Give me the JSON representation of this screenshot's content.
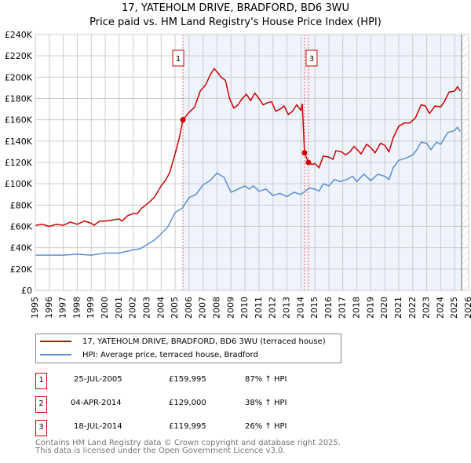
{
  "title": "17, YATEHOLM DRIVE, BRADFORD, BD6 3WU",
  "subtitle": "Price paid vs. HM Land Registry's House Price Index (HPI)",
  "chart_data": {
    "type": "line",
    "title": "17, YATEHOLM DRIVE, BRADFORD, BD6 3WU",
    "subtitle": "Price paid vs. HM Land Registry's House Price Index (HPI)",
    "xlim": [
      1995,
      2026
    ],
    "ylim": [
      0,
      240000
    ],
    "x_ticks": [
      "1995",
      "1996",
      "1997",
      "1998",
      "1999",
      "2000",
      "2001",
      "2002",
      "2003",
      "2004",
      "2005",
      "2006",
      "2007",
      "2008",
      "2009",
      "2010",
      "2011",
      "2012",
      "2013",
      "2014",
      "2015",
      "2016",
      "2017",
      "2018",
      "2019",
      "2020",
      "2021",
      "2022",
      "2023",
      "2024",
      "2025",
      "2026"
    ],
    "y_ticks": [
      "£0",
      "£20K",
      "£40K",
      "£60K",
      "£80K",
      "£100K",
      "£120K",
      "£140K",
      "£160K",
      "£180K",
      "£200K",
      "£220K",
      "£240K"
    ],
    "grid": true,
    "colors": {
      "property": "#cc0000",
      "hpi": "#5b8fd4",
      "shade": "#eef3fc"
    },
    "series": [
      {
        "name": "17, YATEHOLM DRIVE, BRADFORD, BD6 3WU (terraced house)",
        "color": "#cc0000",
        "points": [
          [
            1995,
            61
          ],
          [
            1995.5,
            62
          ],
          [
            1996,
            60
          ],
          [
            1996.5,
            62
          ],
          [
            1997,
            61
          ],
          [
            1997.5,
            64
          ],
          [
            1998,
            62
          ],
          [
            1998.5,
            65
          ],
          [
            1999,
            63
          ],
          [
            1999.2,
            61
          ],
          [
            1999.6,
            65
          ],
          [
            2000,
            65
          ],
          [
            2000.5,
            66
          ],
          [
            2001,
            67
          ],
          [
            2001.2,
            65
          ],
          [
            2001.6,
            70
          ],
          [
            2002,
            72
          ],
          [
            2002.3,
            72
          ],
          [
            2002.6,
            77
          ],
          [
            2003,
            81
          ],
          [
            2003.5,
            87
          ],
          [
            2004,
            98
          ],
          [
            2004.3,
            103
          ],
          [
            2004.6,
            110
          ],
          [
            2005,
            128
          ],
          [
            2005.3,
            143
          ],
          [
            2005.56,
            160
          ],
          [
            2006,
            167
          ],
          [
            2006.4,
            172
          ],
          [
            2006.8,
            187
          ],
          [
            2007.2,
            193
          ],
          [
            2007.5,
            202
          ],
          [
            2007.8,
            208
          ],
          [
            2008,
            205
          ],
          [
            2008.3,
            200
          ],
          [
            2008.6,
            197
          ],
          [
            2008.9,
            180
          ],
          [
            2009.2,
            171
          ],
          [
            2009.5,
            174
          ],
          [
            2009.8,
            180
          ],
          [
            2010.1,
            184
          ],
          [
            2010.4,
            178
          ],
          [
            2010.7,
            185
          ],
          [
            2011,
            180
          ],
          [
            2011.3,
            174
          ],
          [
            2011.6,
            176
          ],
          [
            2011.9,
            177
          ],
          [
            2012.2,
            168
          ],
          [
            2012.5,
            170
          ],
          [
            2012.8,
            173
          ],
          [
            2013.1,
            165
          ],
          [
            2013.4,
            168
          ],
          [
            2013.7,
            174
          ],
          [
            2014.0,
            169
          ],
          [
            2014.1,
            175
          ],
          [
            2014.26,
            129
          ],
          [
            2014.54,
            120
          ],
          [
            2014.8,
            118
          ],
          [
            2015,
            119
          ],
          [
            2015.3,
            115
          ],
          [
            2015.6,
            126
          ],
          [
            2016,
            125
          ],
          [
            2016.3,
            123
          ],
          [
            2016.5,
            131
          ],
          [
            2016.9,
            130
          ],
          [
            2017.2,
            127
          ],
          [
            2017.5,
            130
          ],
          [
            2017.8,
            135
          ],
          [
            2018.1,
            131
          ],
          [
            2018.3,
            128
          ],
          [
            2018.7,
            137
          ],
          [
            2019,
            134
          ],
          [
            2019.3,
            129
          ],
          [
            2019.7,
            138
          ],
          [
            2020,
            136
          ],
          [
            2020.3,
            130
          ],
          [
            2020.6,
            143
          ],
          [
            2021,
            154
          ],
          [
            2021.4,
            157
          ],
          [
            2021.8,
            157
          ],
          [
            2022.2,
            162
          ],
          [
            2022.6,
            174
          ],
          [
            2022.9,
            173
          ],
          [
            2023.2,
            166
          ],
          [
            2023.6,
            173
          ],
          [
            2024,
            172
          ],
          [
            2024.3,
            178
          ],
          [
            2024.6,
            186
          ],
          [
            2025,
            187
          ],
          [
            2025.2,
            191
          ],
          [
            2025.4,
            187
          ]
        ]
      },
      {
        "name": "HPI: Average price, terraced house, Bradford",
        "color": "#5b8fd4",
        "points": [
          [
            1995,
            33
          ],
          [
            1997,
            33
          ],
          [
            1998,
            34
          ],
          [
            1999,
            33
          ],
          [
            2000,
            35
          ],
          [
            2001,
            35
          ],
          [
            2002,
            38
          ],
          [
            2002.5,
            39
          ],
          [
            2003,
            43
          ],
          [
            2003.5,
            47
          ],
          [
            2004,
            53
          ],
          [
            2004.5,
            60
          ],
          [
            2005,
            73
          ],
          [
            2005.5,
            77
          ],
          [
            2006,
            87
          ],
          [
            2006.5,
            90
          ],
          [
            2007,
            99
          ],
          [
            2007.5,
            103
          ],
          [
            2008,
            110
          ],
          [
            2008.5,
            106
          ],
          [
            2009,
            92
          ],
          [
            2009.5,
            95
          ],
          [
            2010,
            98
          ],
          [
            2010.3,
            95
          ],
          [
            2010.6,
            98
          ],
          [
            2011,
            93
          ],
          [
            2011.5,
            95
          ],
          [
            2012,
            89
          ],
          [
            2012.5,
            91
          ],
          [
            2013,
            88
          ],
          [
            2013.5,
            92
          ],
          [
            2014,
            90
          ],
          [
            2014.3,
            93
          ],
          [
            2014.6,
            96
          ],
          [
            2015,
            95
          ],
          [
            2015.3,
            93
          ],
          [
            2015.6,
            100
          ],
          [
            2016,
            98
          ],
          [
            2016.4,
            104
          ],
          [
            2016.8,
            102
          ],
          [
            2017.3,
            104
          ],
          [
            2017.7,
            107
          ],
          [
            2018,
            102
          ],
          [
            2018.5,
            109
          ],
          [
            2019,
            103
          ],
          [
            2019.5,
            109
          ],
          [
            2020,
            107
          ],
          [
            2020.3,
            104
          ],
          [
            2020.6,
            115
          ],
          [
            2021,
            122
          ],
          [
            2021.5,
            124
          ],
          [
            2022,
            127
          ],
          [
            2022.3,
            132
          ],
          [
            2022.6,
            139
          ],
          [
            2023,
            138
          ],
          [
            2023.3,
            132
          ],
          [
            2023.7,
            139
          ],
          [
            2024,
            137
          ],
          [
            2024.5,
            148
          ],
          [
            2025,
            150
          ],
          [
            2025.2,
            153
          ],
          [
            2025.4,
            149
          ]
        ]
      }
    ],
    "sales": [
      {
        "id": "1",
        "date": "25-JUL-2005",
        "x": 2005.56,
        "price": "£159,995",
        "value": 159995,
        "hpi": "87% ↑ HPI"
      },
      {
        "id": "2",
        "date": "04-APR-2014",
        "x": 2014.26,
        "price": "£129,000",
        "value": 129000,
        "hpi": "38% ↑ HPI"
      },
      {
        "id": "3",
        "date": "18-JUL-2014",
        "x": 2014.54,
        "price": "£119,995",
        "value": 119995,
        "hpi": "26% ↑ HPI"
      }
    ],
    "shade_from": 2005.56,
    "forecast_from": 2025.5
  },
  "footer": [
    "Contains HM Land Registry data © Crown copyright and database right 2025.",
    "This data is licensed under the Open Government Licence v3.0."
  ]
}
